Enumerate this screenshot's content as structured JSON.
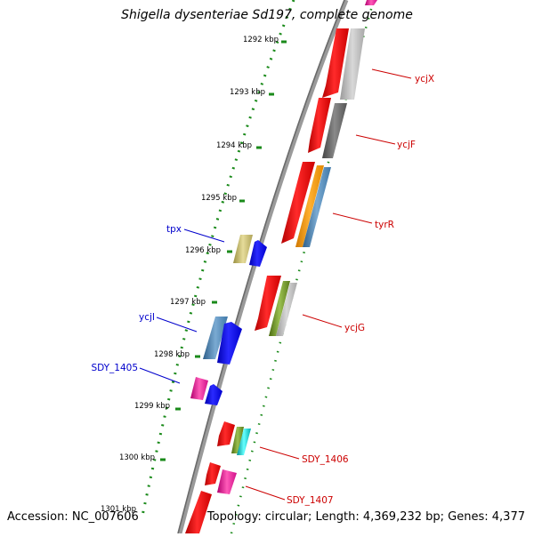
{
  "header": {
    "title": "Shigella dysenteriae Sd197, complete genome"
  },
  "footer": {
    "accession": "Accession: NC_007606",
    "summary": "Topology: circular; Length: 4,369,232 bp; Genes: 4,377"
  },
  "ticks": [
    {
      "label": "1292 kbp"
    },
    {
      "label": "1293 kbp"
    },
    {
      "label": "1294 kbp"
    },
    {
      "label": "1295 kbp"
    },
    {
      "label": "1296 kbp"
    },
    {
      "label": "1297 kbp"
    },
    {
      "label": "1298 kbp"
    },
    {
      "label": "1299 kbp"
    },
    {
      "label": "1300 kbp"
    },
    {
      "label": "1301 kbp"
    }
  ],
  "gene_labels": [
    {
      "name": "tpx",
      "strand": "reverse",
      "color": "#0000cc"
    },
    {
      "name": "ycjI",
      "strand": "reverse",
      "color": "#0000cc"
    },
    {
      "name": "SDY_1405",
      "strand": "reverse",
      "color": "#0000cc"
    },
    {
      "name": "ycjX",
      "strand": "forward",
      "color": "#cc0000"
    },
    {
      "name": "ycjF",
      "strand": "forward",
      "color": "#cc0000"
    },
    {
      "name": "tyrR",
      "strand": "forward",
      "color": "#cc0000"
    },
    {
      "name": "ycjG",
      "strand": "forward",
      "color": "#cc0000"
    },
    {
      "name": "SDY_1406",
      "strand": "forward",
      "color": "#cc0000"
    },
    {
      "name": "SDY_1407",
      "strand": "forward",
      "color": "#cc0000"
    }
  ],
  "colors": {
    "backbone": "#888888",
    "forward_cds": "#ff0000",
    "reverse_cds": "#0000ff",
    "tick_dots": "#1a8a1a"
  }
}
